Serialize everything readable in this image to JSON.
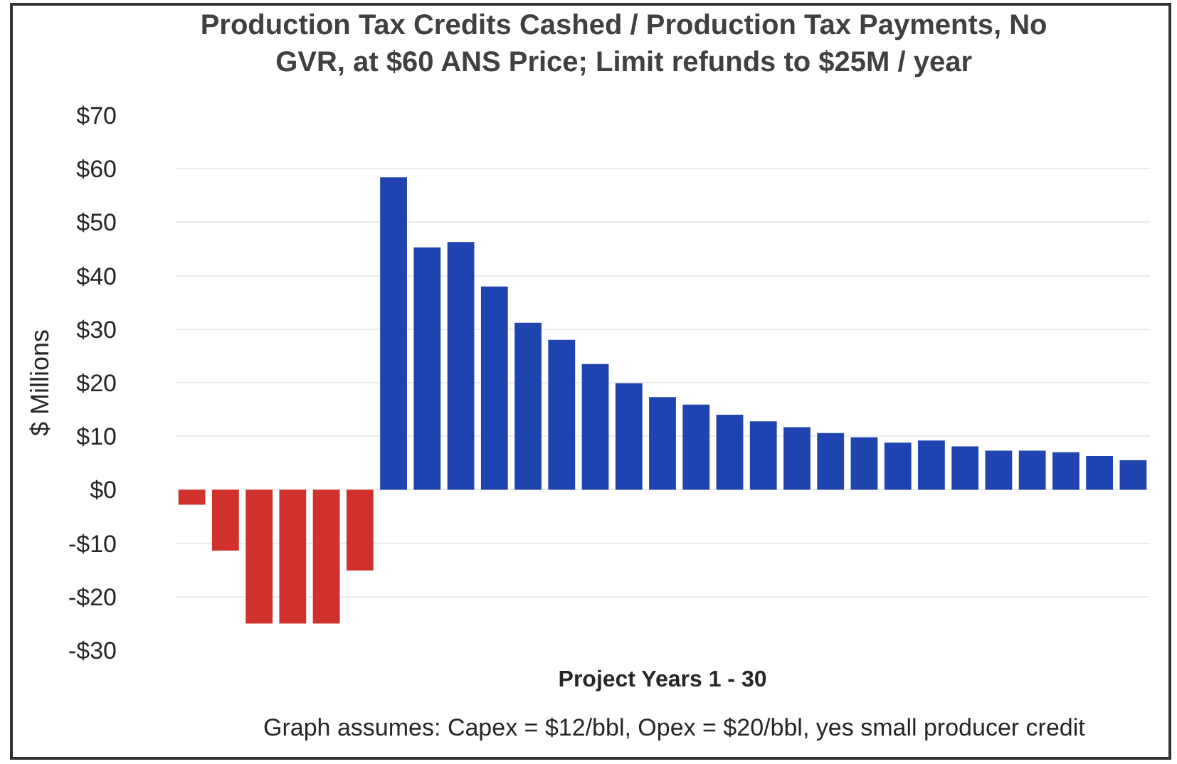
{
  "chart_data": {
    "type": "bar",
    "title": "Production Tax Credits Cashed / Production Tax Payments, No GVR, at $60 ANS Price; Limit refunds to $25M / year",
    "xlabel": "Project Years 1 - 30",
    "ylabel": "$ Millions",
    "annotations": [
      "Graph assumes: Capex = $12/bbl, Opex = $20/bbl, yes small producer credit"
    ],
    "categories": [
      null,
      null,
      null,
      null,
      null,
      null,
      null,
      null,
      null,
      null,
      null,
      null,
      null,
      null,
      null,
      null,
      null,
      null,
      null,
      null,
      null,
      null,
      null,
      null,
      null,
      null,
      null,
      null,
      null
    ],
    "values": [
      -2.8,
      -11.4,
      -25,
      -25,
      -25,
      -15.1,
      58.4,
      45.3,
      46.3,
      38.0,
      31.2,
      28.0,
      23.5,
      19.9,
      17.3,
      15.9,
      14.0,
      12.8,
      11.7,
      10.6,
      9.8,
      8.8,
      9.2,
      8.1,
      7.3,
      7.3,
      7.0,
      6.3,
      5.5
    ],
    "colors": [
      "#d0312d",
      "#d0312d",
      "#d0312d",
      "#d0312d",
      "#d0312d",
      "#d0312d",
      "#1f44b0",
      "#1f44b0",
      "#1f44b0",
      "#1f44b0",
      "#1f44b0",
      "#1f44b0",
      "#1f44b0",
      "#1f44b0",
      "#1f44b0",
      "#1f44b0",
      "#1f44b0",
      "#1f44b0",
      "#1f44b0",
      "#1f44b0",
      "#1f44b0",
      "#1f44b0",
      "#1f44b0",
      "#1f44b0",
      "#1f44b0",
      "#1f44b0",
      "#1f44b0",
      "#1f44b0",
      "#1f44b0"
    ],
    "ylim": [
      -30,
      70
    ],
    "yticks": [
      {
        "value": -30,
        "label": "-$30"
      },
      {
        "value": -20,
        "label": "-$20"
      },
      {
        "value": -10,
        "label": "-$10"
      },
      {
        "value": 0,
        "label": "$0"
      },
      {
        "value": 10,
        "label": "$10"
      },
      {
        "value": 20,
        "label": "$20"
      },
      {
        "value": 30,
        "label": "$30"
      },
      {
        "value": 40,
        "label": "$40"
      },
      {
        "value": 50,
        "label": "$50"
      },
      {
        "value": 60,
        "label": "$60"
      },
      {
        "value": 70,
        "label": "$70"
      }
    ],
    "grid": "y",
    "tick_labels": "y"
  }
}
